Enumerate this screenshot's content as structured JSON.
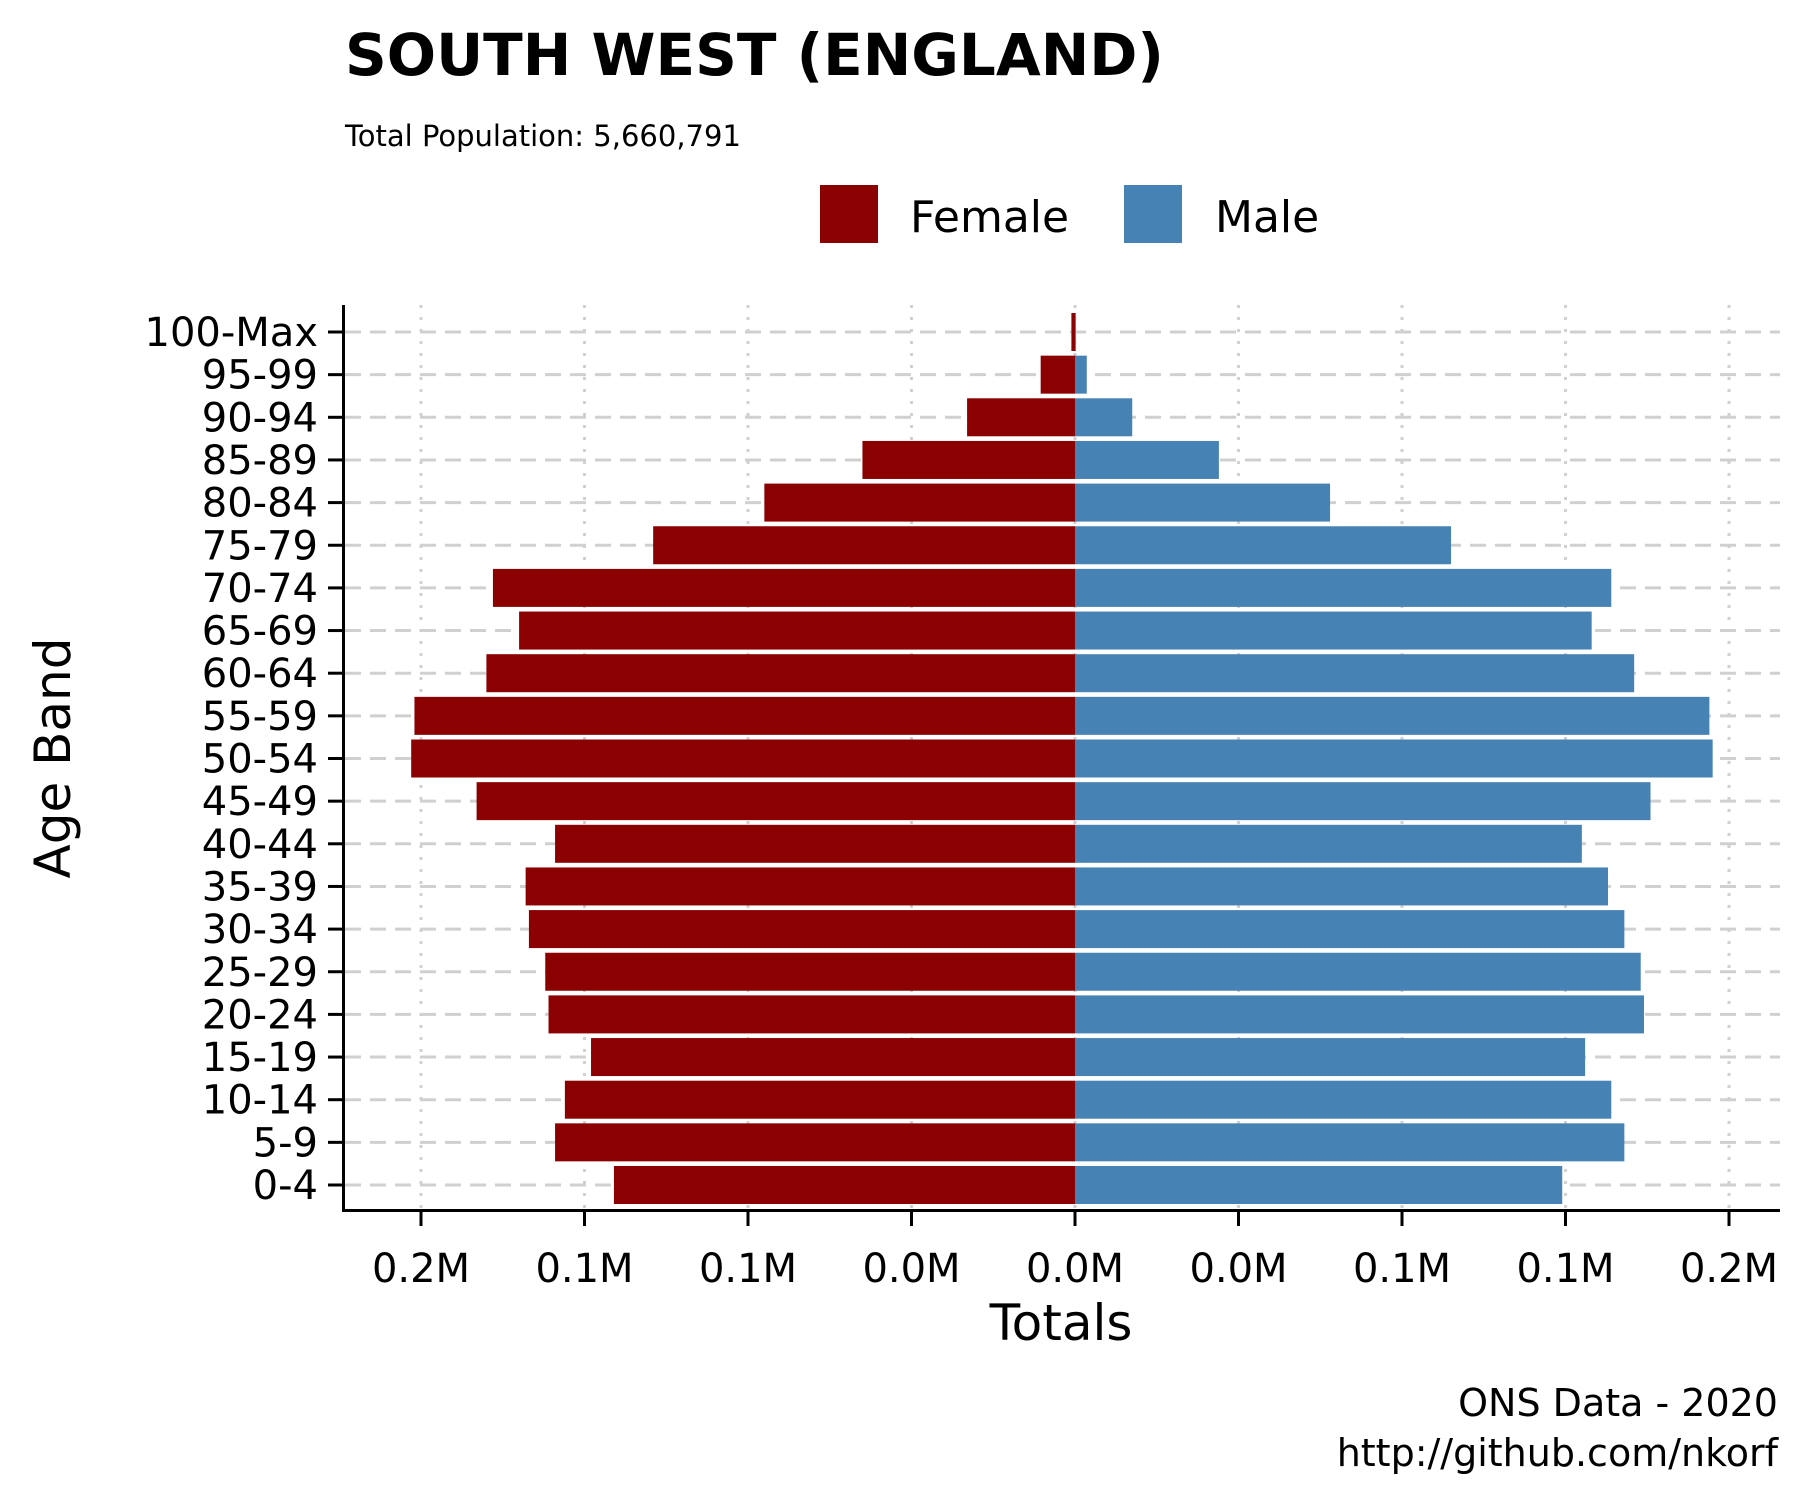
{
  "chart_data": {
    "type": "bar",
    "orientation": "horizontal",
    "title": "SOUTH WEST (ENGLAND)",
    "subtitle": "Total Population:  5,660,791",
    "xlabel": "Totals",
    "ylabel": "Age Band",
    "caption_line1": "ONS Data - 2020",
    "caption_line2": "http://github.com/nkorf",
    "legend_position": "top",
    "grid": true,
    "xlim": [
      -200000,
      200000
    ],
    "x_ticks": [
      -200000,
      -150000,
      -100000,
      -50000,
      0,
      50000,
      100000,
      150000,
      200000
    ],
    "x_tick_labels": [
      "0.2M",
      "0.1M",
      "0.1M",
      "0.0M",
      "0.0M",
      "0.0M",
      "0.1M",
      "0.1M",
      "0.2M"
    ],
    "categories": [
      "0-4",
      "5-9",
      "10-14",
      "15-19",
      "20-24",
      "25-29",
      "30-34",
      "35-39",
      "40-44",
      "45-49",
      "50-54",
      "55-59",
      "60-64",
      "65-69",
      "70-74",
      "75-79",
      "80-84",
      "85-89",
      "90-94",
      "95-99",
      "100-Max"
    ],
    "series": [
      {
        "name": "Female",
        "color": "#8b0000",
        "values": [
          141000,
          159000,
          156000,
          148000,
          161000,
          162000,
          167000,
          168000,
          159000,
          183000,
          203000,
          202000,
          180000,
          170000,
          178000,
          129000,
          95000,
          65000,
          33000,
          10500,
          1100
        ]
      },
      {
        "name": "Male",
        "color": "#4682b4",
        "values": [
          149000,
          168000,
          164000,
          156000,
          174000,
          173000,
          168000,
          163000,
          155000,
          176000,
          195000,
          194000,
          171000,
          158000,
          164000,
          115000,
          78000,
          44000,
          17500,
          3600,
          300
        ]
      }
    ]
  }
}
